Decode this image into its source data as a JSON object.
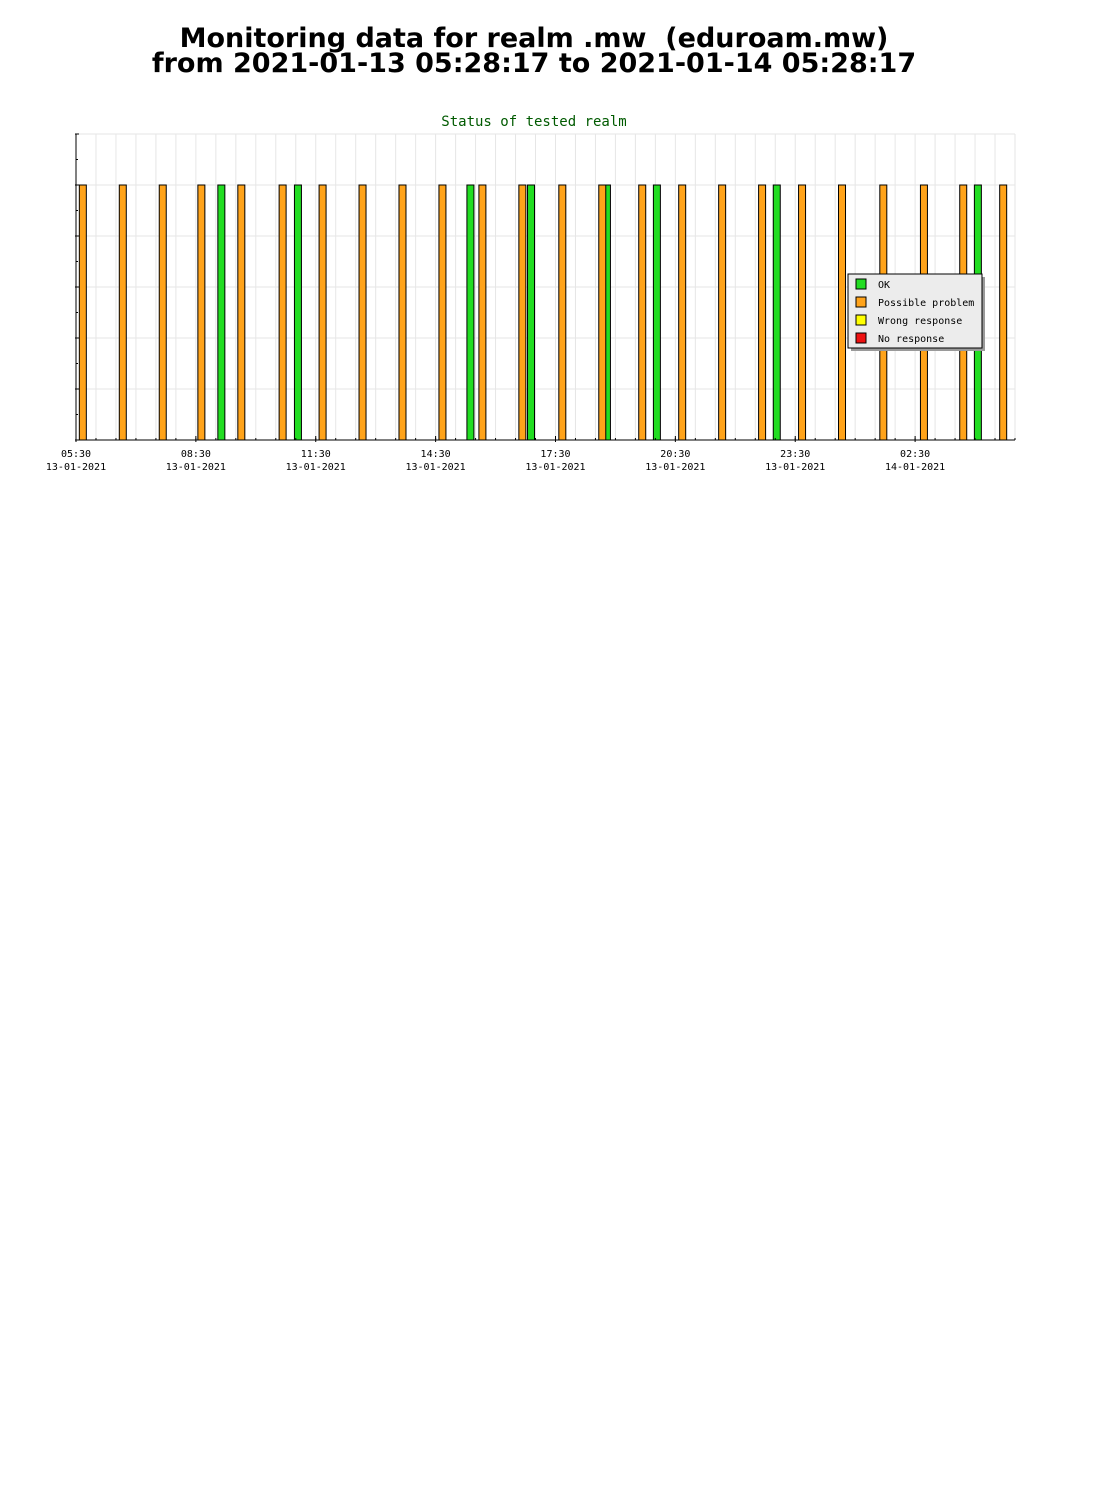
{
  "page": {
    "title_line1": "Monitoring data for realm .mw  (eduroam.mw)",
    "title_line2": "from 2021-01-13 05:28:17 to 2021-01-14 05:28:17"
  },
  "chart_data": {
    "type": "bar",
    "title": "Status of tested realm",
    "xlabel": "",
    "ylabel": "",
    "x_unit": "minutes after 2021-01-13 05:28",
    "xlim": [
      0,
      1410
    ],
    "ylim": [
      0,
      6
    ],
    "grid": true,
    "legend_position": "right",
    "x_ticks": [
      {
        "time": "05:30",
        "date": "13-01-2021",
        "x": 0
      },
      {
        "time": "08:30",
        "date": "13-01-2021",
        "x": 180
      },
      {
        "time": "11:30",
        "date": "13-01-2021",
        "x": 360
      },
      {
        "time": "14:30",
        "date": "13-01-2021",
        "x": 540
      },
      {
        "time": "17:30",
        "date": "13-01-2021",
        "x": 720
      },
      {
        "time": "20:30",
        "date": "13-01-2021",
        "x": 900
      },
      {
        "time": "23:30",
        "date": "13-01-2021",
        "x": 1080
      },
      {
        "time": "02:30",
        "date": "14-01-2021",
        "x": 1260
      }
    ],
    "series": [
      {
        "name": "OK",
        "color": "#22dd22",
        "x": [
          213,
          328,
          587,
          678,
          792,
          867,
          1047,
          1349
        ],
        "values": [
          5,
          5,
          5,
          5,
          5,
          5,
          5,
          5
        ]
      },
      {
        "name": "Possible problem",
        "color": "#ffa31a",
        "x": [
          5,
          65,
          125,
          183,
          243,
          305,
          365,
          425,
          485,
          545,
          605,
          665,
          725,
          785,
          845,
          905,
          965,
          1025,
          1085,
          1145,
          1207,
          1268,
          1327,
          1387
        ],
        "values": [
          5,
          5,
          5,
          5,
          5,
          5,
          5,
          5,
          5,
          5,
          5,
          5,
          5,
          5,
          5,
          5,
          5,
          5,
          5,
          5,
          5,
          5,
          5,
          5
        ]
      },
      {
        "name": "Wrong response",
        "color": "#ffff00",
        "x": [],
        "values": []
      },
      {
        "name": "No response",
        "color": "#ee1111",
        "x": [],
        "values": []
      }
    ]
  }
}
